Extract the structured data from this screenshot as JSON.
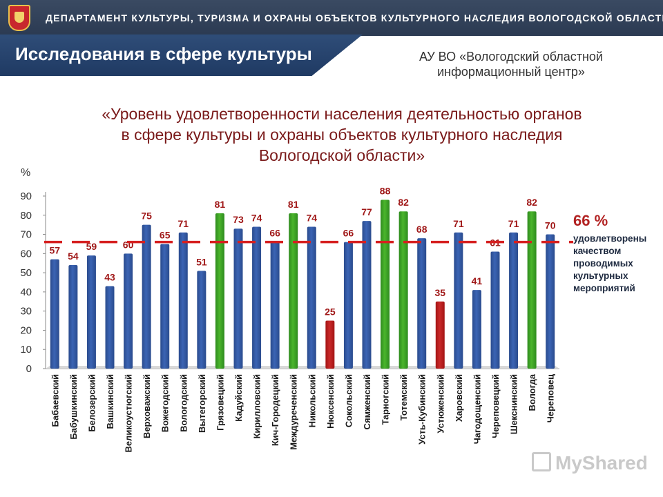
{
  "header": {
    "department": "ДЕПАРТАМЕНТ КУЛЬТУРЫ, ТУРИЗМА И ОХРАНЫ ОБЪЕКТОВ КУЛЬТУРНОГО НАСЛЕДИЯ ВОЛОГОДСКОЙ ОБЛАСТИ",
    "section_title": "Исследования в сфере культуры",
    "org_line1": "АУ ВО «Вологодский областной",
    "org_line2": "информационный центр»"
  },
  "side_note": {
    "value": "66 %",
    "text": "удовлетворены качеством проводимых культурных мероприятий"
  },
  "watermark": "MyShared",
  "chart_data": {
    "type": "bar",
    "title_lines": [
      "«Уровень удовлетворенности населения деятельностью органов",
      "в сфере культуры и охраны объектов культурного наследия",
      "Вологодской области»"
    ],
    "ylabel": "%",
    "ylim": [
      0,
      90
    ],
    "yticks": [
      0,
      10,
      20,
      30,
      40,
      50,
      60,
      70,
      80,
      90
    ],
    "grid": false,
    "reference_line": {
      "value": 66
    },
    "categories": [
      "Бабаевский",
      "Бабушкинский",
      "Белозерский",
      "Вашкинский",
      "Великоустюгский",
      "Верховажский",
      "Вожегодский",
      "Вологодский",
      "Вытегорский",
      "Грязовецкий",
      "Кадуйский",
      "Кирилловский",
      "Кич-Городецкий",
      "Междуреченский",
      "Никольский",
      "Нюксенский",
      "Сокольский",
      "Сямженский",
      "Тарногский",
      "Тотемский",
      "Усть-Кубинский",
      "Устюженский",
      "Харовский",
      "Чагодощенский",
      "Череповецкий",
      "Шекснинский",
      "Вологда",
      "Череповец"
    ],
    "values": [
      57,
      54,
      59,
      43,
      60,
      75,
      65,
      71,
      51,
      81,
      73,
      74,
      66,
      81,
      74,
      25,
      66,
      77,
      88,
      82,
      68,
      35,
      71,
      41,
      61,
      71,
      82,
      70
    ],
    "highlight": [
      "blue",
      "blue",
      "blue",
      "blue",
      "blue",
      "blue",
      "blue",
      "blue",
      "blue",
      "green",
      "blue",
      "blue",
      "blue",
      "green",
      "blue",
      "red",
      "blue",
      "blue",
      "green",
      "green",
      "blue",
      "red",
      "blue",
      "blue",
      "blue",
      "blue",
      "green",
      "blue"
    ],
    "colors": {
      "blue": "#2a4b8d",
      "green": "#2e8b1e",
      "red": "#a31515",
      "reference": "#d62020",
      "label": "#a01818"
    }
  }
}
